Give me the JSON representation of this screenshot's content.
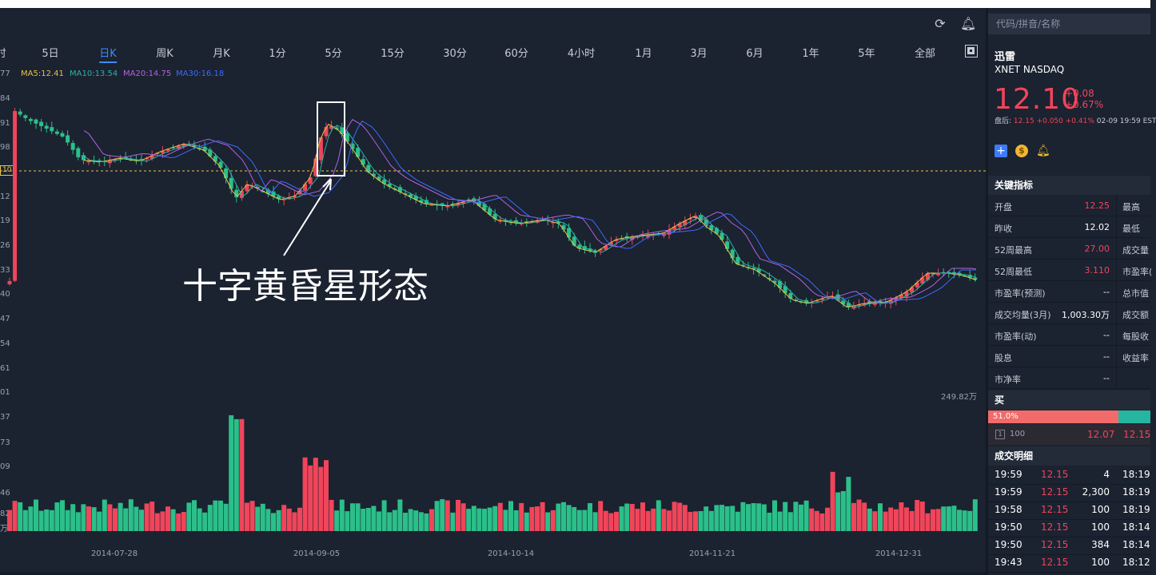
{
  "header": {
    "search_placeholder": "代码/拼音/名称"
  },
  "tabs": [
    {
      "label": "时",
      "active": false
    },
    {
      "label": "5日",
      "active": false
    },
    {
      "label": "日K",
      "active": true
    },
    {
      "label": "周K",
      "active": false
    },
    {
      "label": "月K",
      "active": false
    },
    {
      "label": "1分",
      "active": false
    },
    {
      "label": "5分",
      "active": false
    },
    {
      "label": "15分",
      "active": false
    },
    {
      "label": "30分",
      "active": false
    },
    {
      "label": "60分",
      "active": false
    },
    {
      "label": "4小时",
      "active": false
    },
    {
      "label": "1月",
      "active": false
    },
    {
      "label": "3月",
      "active": false
    },
    {
      "label": "6月",
      "active": false
    },
    {
      "label": "1年",
      "active": false
    },
    {
      "label": "5年",
      "active": false
    },
    {
      "label": "全部",
      "active": false
    }
  ],
  "ma_legend": [
    {
      "label": "MA5:12.41",
      "color": "#e8c547"
    },
    {
      "label": "MA10:13.54",
      "color": "#2bb3a3"
    },
    {
      "label": "MA20:14.75",
      "color": "#b064e0"
    },
    {
      "label": "MA30:16.18",
      "color": "#3d6bfd"
    }
  ],
  "y_axis_labels": [
    "77",
    "84",
    "91",
    "98",
    "10",
    "12",
    "19",
    "26",
    "33",
    "40",
    "47",
    "54",
    "61",
    "01",
    "37",
    "73",
    "09",
    "46",
    "82",
    "万"
  ],
  "current_price_tag": "10",
  "x_axis_labels": [
    "2014-07-28",
    "2014-09-05",
    "2014-10-14",
    "2014-11-21",
    "2014-12-31"
  ],
  "annotation": "十字黄昏星形态",
  "volume_label": "249.82万",
  "stock": {
    "name": "迅雷",
    "code": "XNET NASDAQ",
    "price": "12.10",
    "change": "+0.08",
    "change_pct": "+0.67%",
    "after_hours_label": "盘后:",
    "after_hours_price": "12.15",
    "after_hours_change": "+0.050",
    "after_hours_pct": "+0.41%",
    "after_hours_time": "02-09 19:59 EST"
  },
  "key_metrics": {
    "title": "关键指标",
    "left": [
      {
        "label": "开盘",
        "value": "12.25",
        "red": true
      },
      {
        "label": "昨收",
        "value": "12.02",
        "red": false
      },
      {
        "label": "52周最高",
        "value": "27.00",
        "red": true
      },
      {
        "label": "52周最低",
        "value": "3.110",
        "red": true
      },
      {
        "label": "市盈率(预测)",
        "value": "--",
        "red": false
      },
      {
        "label": "成交均量(3月)",
        "value": "1,003.30万",
        "red": false
      },
      {
        "label": "市盈率(动)",
        "value": "--",
        "red": false
      },
      {
        "label": "股息",
        "value": "--",
        "red": false
      },
      {
        "label": "市净率",
        "value": "--",
        "red": false
      }
    ],
    "right": [
      "最高",
      "最低",
      "成交量",
      "市盈率(",
      "总市值",
      "成交额",
      "每股收",
      "收益率"
    ]
  },
  "order_book": {
    "title": "买",
    "buy_ratio": "51.0%",
    "buy_ratio_value": 0.51,
    "level": "1",
    "qty": "100",
    "bid": "12.07",
    "ask": "12.15"
  },
  "trades": {
    "title": "成交明细",
    "rows": [
      {
        "time": "19:59",
        "price": "12.15",
        "vol": "4",
        "time2": "18:19"
      },
      {
        "time": "19:59",
        "price": "12.15",
        "vol": "2,300",
        "time2": "18:19"
      },
      {
        "time": "19:58",
        "price": "12.15",
        "vol": "100",
        "time2": "18:19"
      },
      {
        "time": "19:50",
        "price": "12.15",
        "vol": "100",
        "time2": "18:14"
      },
      {
        "time": "19:50",
        "price": "12.15",
        "vol": "384",
        "time2": "18:14"
      },
      {
        "time": "19:43",
        "price": "12.15",
        "vol": "100",
        "time2": "18:12"
      }
    ]
  }
}
